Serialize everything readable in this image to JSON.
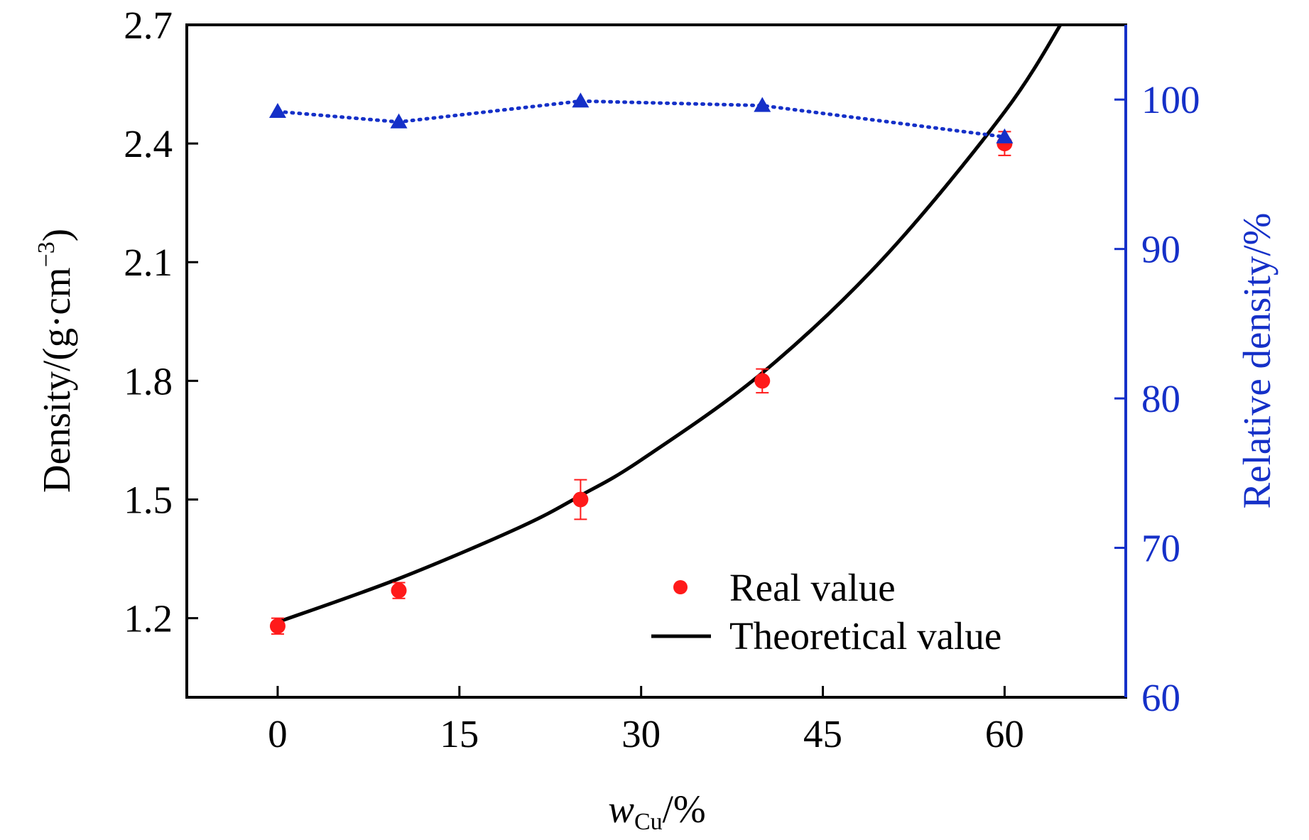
{
  "chart_data": {
    "type": "line",
    "xlabel": {
      "main": "w",
      "sub": "Cu",
      "rest": "/%"
    },
    "ylabel_left": {
      "main": "Density/(g·cm",
      "sup": "−3",
      "rest": ")"
    },
    "ylabel_right": "Relative density/%",
    "xlim": [
      -7.5,
      70
    ],
    "ylim_left": [
      1.0,
      2.7
    ],
    "ylim_right": [
      60,
      105
    ],
    "x_ticks": [
      0,
      15,
      30,
      45,
      60
    ],
    "x_tick_labels": [
      "0",
      "15",
      "30",
      "45",
      "60"
    ],
    "y_left_ticks": [
      1.2,
      1.5,
      1.8,
      2.1,
      2.4,
      2.7
    ],
    "y_left_tick_labels": [
      "1.2",
      "1.5",
      "1.8",
      "2.1",
      "2.4",
      "2.7"
    ],
    "y_right_ticks": [
      60,
      70,
      80,
      90,
      100
    ],
    "y_right_tick_labels": [
      "60",
      "70",
      "80",
      "90",
      "100"
    ],
    "series": [
      {
        "name": "Real value",
        "axis": "left",
        "marker": "circle",
        "color": "#ff1a1a",
        "x": [
          0,
          10,
          25,
          40,
          60
        ],
        "y": [
          1.18,
          1.27,
          1.5,
          1.8,
          2.4
        ],
        "error": [
          0.02,
          0.02,
          0.05,
          0.03,
          0.03
        ]
      },
      {
        "name": "Theoretical value",
        "axis": "left",
        "style": "solid",
        "color": "#000000",
        "x": [
          0,
          10,
          20,
          25,
          30,
          40,
          50,
          60,
          65
        ],
        "y": [
          1.19,
          1.3,
          1.43,
          1.51,
          1.6,
          1.82,
          2.11,
          2.48,
          2.72
        ]
      },
      {
        "name": "Relative density",
        "axis": "right",
        "marker": "triangle",
        "style": "dotted",
        "color": "#1530c8",
        "x": [
          0,
          10,
          25,
          40,
          60
        ],
        "y": [
          99.2,
          98.5,
          99.9,
          99.6,
          97.5
        ]
      }
    ],
    "legend": {
      "position": "lower-right",
      "entries": [
        "Real value",
        "Theoretical value"
      ]
    }
  }
}
